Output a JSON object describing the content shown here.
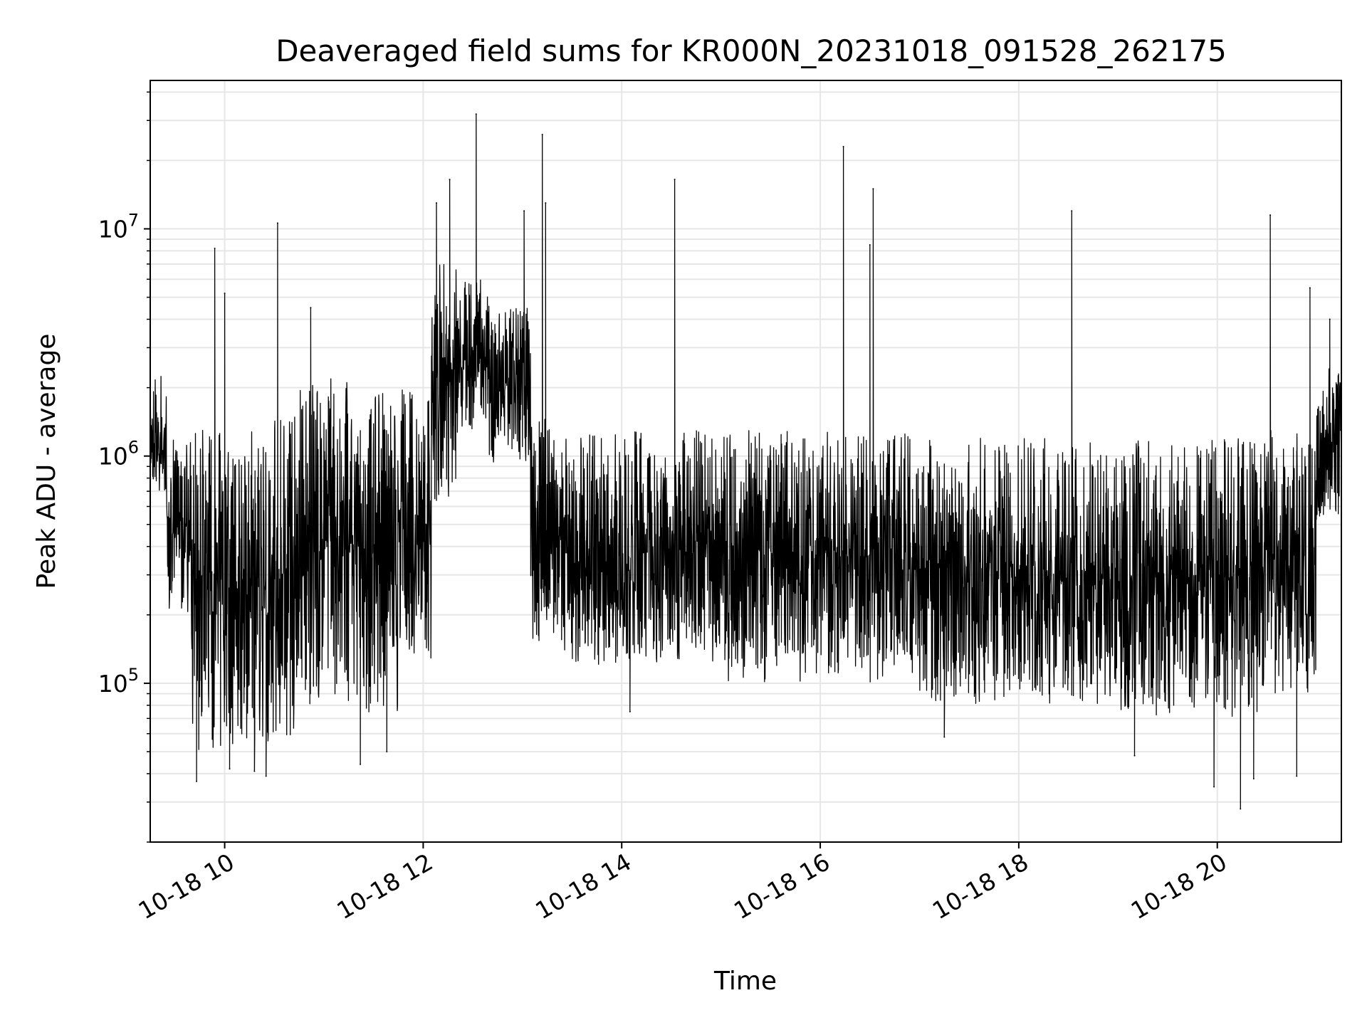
{
  "chart_data": {
    "type": "line",
    "title": "Deaveraged field sums for KR000N_20231018_091528_262175",
    "xlabel": "Time",
    "ylabel": "Peak ADU - average",
    "yscale": "log",
    "ylim": [
      20000,
      45000000
    ],
    "xlim": [
      "2023-10-18 09:15",
      "2023-10-18 21:15"
    ],
    "grid": true,
    "x_ticks": [
      {
        "x": "2023-10-18 10:00",
        "label": "10-18 10"
      },
      {
        "x": "2023-10-18 12:00",
        "label": "10-18 12"
      },
      {
        "x": "2023-10-18 14:00",
        "label": "10-18 14"
      },
      {
        "x": "2023-10-18 16:00",
        "label": "10-18 16"
      },
      {
        "x": "2023-10-18 18:00",
        "label": "10-18 18"
      },
      {
        "x": "2023-10-18 20:00",
        "label": "10-18 20"
      }
    ],
    "y_ticks": [
      {
        "value": 100000,
        "base": "10",
        "exp": "5"
      },
      {
        "value": 1000000,
        "base": "10",
        "exp": "6"
      },
      {
        "value": 10000000,
        "base": "10",
        "exp": "7"
      }
    ],
    "series": [
      {
        "color": "#000000",
        "segments": [
          {
            "from": "2023-10-18 09:15",
            "to": "2023-10-18 09:25",
            "low": 700000,
            "high": 2300000
          },
          {
            "from": "2023-10-18 09:25",
            "to": "2023-10-18 09:40",
            "low": 200000,
            "high": 1200000
          },
          {
            "from": "2023-10-18 09:40",
            "to": "2023-10-18 10:15",
            "low": 50000,
            "high": 1300000
          },
          {
            "from": "2023-10-18 10:15",
            "to": "2023-10-18 10:45",
            "low": 55000,
            "high": 1500000
          },
          {
            "from": "2023-10-18 10:45",
            "to": "2023-10-18 11:15",
            "low": 80000,
            "high": 2200000
          },
          {
            "from": "2023-10-18 11:15",
            "to": "2023-10-18 11:45",
            "low": 70000,
            "high": 2000000
          },
          {
            "from": "2023-10-18 11:45",
            "to": "2023-10-18 12:05",
            "low": 120000,
            "high": 2000000
          },
          {
            "from": "2023-10-18 12:05",
            "to": "2023-10-18 12:20",
            "low": 600000,
            "high": 7000000
          },
          {
            "from": "2023-10-18 12:20",
            "to": "2023-10-18 12:40",
            "low": 1200000,
            "high": 6000000
          },
          {
            "from": "2023-10-18 12:40",
            "to": "2023-10-18 13:05",
            "low": 900000,
            "high": 4500000
          },
          {
            "from": "2023-10-18 13:05",
            "to": "2023-10-18 13:20",
            "low": 150000,
            "high": 1500000
          },
          {
            "from": "2023-10-18 13:20",
            "to": "2023-10-18 15:00",
            "low": 120000,
            "high": 1300000
          },
          {
            "from": "2023-10-18 15:00",
            "to": "2023-10-18 17:00",
            "low": 100000,
            "high": 1300000
          },
          {
            "from": "2023-10-18 17:00",
            "to": "2023-10-18 19:00",
            "low": 80000,
            "high": 1200000
          },
          {
            "from": "2023-10-18 19:00",
            "to": "2023-10-18 20:30",
            "low": 70000,
            "high": 1200000
          },
          {
            "from": "2023-10-18 20:30",
            "to": "2023-10-18 21:00",
            "low": 90000,
            "high": 1300000
          },
          {
            "from": "2023-10-18 21:00",
            "to": "2023-10-18 21:15",
            "low": 500000,
            "high": 2500000
          }
        ],
        "spikes": [
          {
            "x": "2023-10-18 09:54",
            "value": 8200000
          },
          {
            "x": "2023-10-18 10:00",
            "value": 5200000
          },
          {
            "x": "2023-10-18 10:32",
            "value": 10600000
          },
          {
            "x": "2023-10-18 10:52",
            "value": 4500000
          },
          {
            "x": "2023-10-18 12:08",
            "value": 13000000
          },
          {
            "x": "2023-10-18 12:16",
            "value": 16500000
          },
          {
            "x": "2023-10-18 12:32",
            "value": 32000000
          },
          {
            "x": "2023-10-18 13:01",
            "value": 12000000
          },
          {
            "x": "2023-10-18 13:12",
            "value": 26000000
          },
          {
            "x": "2023-10-18 13:14",
            "value": 13000000
          },
          {
            "x": "2023-10-18 14:32",
            "value": 16500000
          },
          {
            "x": "2023-10-18 16:14",
            "value": 23000000
          },
          {
            "x": "2023-10-18 16:30",
            "value": 8500000
          },
          {
            "x": "2023-10-18 16:32",
            "value": 15000000
          },
          {
            "x": "2023-10-18 18:32",
            "value": 12000000
          },
          {
            "x": "2023-10-18 20:32",
            "value": 11500000
          },
          {
            "x": "2023-10-18 20:56",
            "value": 5500000
          },
          {
            "x": "2023-10-18 21:08",
            "value": 4000000
          }
        ],
        "dips": [
          {
            "x": "2023-10-18 09:43",
            "value": 37000
          },
          {
            "x": "2023-10-18 10:03",
            "value": 42000
          },
          {
            "x": "2023-10-18 10:18",
            "value": 41000
          },
          {
            "x": "2023-10-18 10:25",
            "value": 39000
          },
          {
            "x": "2023-10-18 11:22",
            "value": 44000
          },
          {
            "x": "2023-10-18 11:38",
            "value": 50000
          },
          {
            "x": "2023-10-18 14:05",
            "value": 75000
          },
          {
            "x": "2023-10-18 17:15",
            "value": 58000
          },
          {
            "x": "2023-10-18 19:10",
            "value": 48000
          },
          {
            "x": "2023-10-18 19:58",
            "value": 35000
          },
          {
            "x": "2023-10-18 20:14",
            "value": 28000
          },
          {
            "x": "2023-10-18 20:22",
            "value": 38000
          },
          {
            "x": "2023-10-18 20:48",
            "value": 39000
          }
        ]
      }
    ]
  }
}
